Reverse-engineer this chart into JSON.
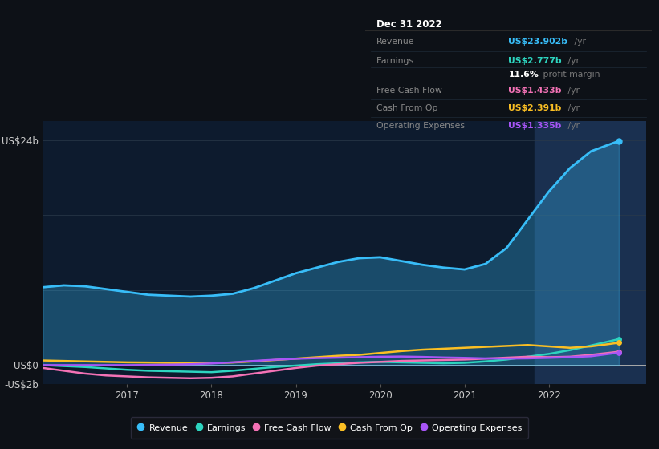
{
  "bg_color": "#0d1117",
  "plot_bg_color": "#0d1b2e",
  "grid_color": "#2a3a4a",
  "ylim": [
    -2000000000.0,
    26000000000.0
  ],
  "tooltip_title": "Dec 31 2022",
  "tooltip_rows": [
    {
      "label": "Revenue",
      "value_colored": "US$23.902b",
      "value_suffix": " /yr",
      "color": "#38bdf8",
      "extra": null
    },
    {
      "label": "Earnings",
      "value_colored": "US$2.777b",
      "value_suffix": " /yr",
      "color": "#2dd4bf",
      "extra": "11.6% profit margin"
    },
    {
      "label": "Free Cash Flow",
      "value_colored": "US$1.433b",
      "value_suffix": " /yr",
      "color": "#f472b6",
      "extra": null
    },
    {
      "label": "Cash From Op",
      "value_colored": "US$2.391b",
      "value_suffix": " /yr",
      "color": "#fbbf24",
      "extra": null
    },
    {
      "label": "Operating Expenses",
      "value_colored": "US$1.335b",
      "value_suffix": " /yr",
      "color": "#a855f7",
      "extra": null
    }
  ],
  "series": {
    "revenue": {
      "color": "#38bdf8",
      "fill_alpha": 0.3,
      "lw": 2.0,
      "x": [
        2016.0,
        2016.25,
        2016.5,
        2016.75,
        2017.0,
        2017.25,
        2017.5,
        2017.75,
        2018.0,
        2018.25,
        2018.5,
        2018.75,
        2019.0,
        2019.25,
        2019.5,
        2019.75,
        2020.0,
        2020.25,
        2020.5,
        2020.75,
        2021.0,
        2021.25,
        2021.5,
        2021.75,
        2022.0,
        2022.25,
        2022.5,
        2022.83
      ],
      "y": [
        8300000000.0,
        8500000000.0,
        8400000000.0,
        8100000000.0,
        7800000000.0,
        7500000000.0,
        7400000000.0,
        7300000000.0,
        7400000000.0,
        7600000000.0,
        8200000000.0,
        9000000000.0,
        9800000000.0,
        10400000000.0,
        11000000000.0,
        11400000000.0,
        11500000000.0,
        11100000000.0,
        10700000000.0,
        10400000000.0,
        10200000000.0,
        10800000000.0,
        12500000000.0,
        15500000000.0,
        18500000000.0,
        21000000000.0,
        22800000000.0,
        23900000000.0
      ]
    },
    "earnings": {
      "color": "#2dd4bf",
      "lw": 1.8,
      "x": [
        2016.0,
        2016.25,
        2016.5,
        2016.75,
        2017.0,
        2017.25,
        2017.5,
        2017.75,
        2018.0,
        2018.25,
        2018.5,
        2018.75,
        2019.0,
        2019.25,
        2019.5,
        2019.75,
        2020.0,
        2020.25,
        2020.5,
        2020.75,
        2021.0,
        2021.25,
        2021.5,
        2021.75,
        2022.0,
        2022.25,
        2022.5,
        2022.83
      ],
      "y": [
        0.0,
        -100000000.0,
        -200000000.0,
        -350000000.0,
        -500000000.0,
        -600000000.0,
        -650000000.0,
        -700000000.0,
        -750000000.0,
        -600000000.0,
        -400000000.0,
        -200000000.0,
        -50000000.0,
        100000000.0,
        200000000.0,
        300000000.0,
        350000000.0,
        300000000.0,
        250000000.0,
        200000000.0,
        250000000.0,
        400000000.0,
        600000000.0,
        900000000.0,
        1200000000.0,
        1600000000.0,
        2100000000.0,
        2777000000.0
      ]
    },
    "free_cash_flow": {
      "color": "#f472b6",
      "lw": 1.8,
      "x": [
        2016.0,
        2016.25,
        2016.5,
        2016.75,
        2017.0,
        2017.25,
        2017.5,
        2017.75,
        2018.0,
        2018.25,
        2018.5,
        2018.75,
        2019.0,
        2019.25,
        2019.5,
        2019.75,
        2020.0,
        2020.25,
        2020.5,
        2020.75,
        2021.0,
        2021.25,
        2021.5,
        2021.75,
        2022.0,
        2022.25,
        2022.5,
        2022.83
      ],
      "y": [
        -300000000.0,
        -600000000.0,
        -900000000.0,
        -1100000000.0,
        -1200000000.0,
        -1300000000.0,
        -1350000000.0,
        -1400000000.0,
        -1350000000.0,
        -1200000000.0,
        -900000000.0,
        -600000000.0,
        -300000000.0,
        -50000000.0,
        100000000.0,
        250000000.0,
        350000000.0,
        450000000.0,
        500000000.0,
        550000000.0,
        600000000.0,
        700000000.0,
        800000000.0,
        900000000.0,
        850000000.0,
        900000000.0,
        1100000000.0,
        1433000000.0
      ]
    },
    "cash_from_op": {
      "color": "#fbbf24",
      "lw": 1.8,
      "x": [
        2016.0,
        2016.25,
        2016.5,
        2016.75,
        2017.0,
        2017.25,
        2017.5,
        2017.75,
        2018.0,
        2018.25,
        2018.5,
        2018.75,
        2019.0,
        2019.25,
        2019.5,
        2019.75,
        2020.0,
        2020.25,
        2020.5,
        2020.75,
        2021.0,
        2021.25,
        2021.5,
        2021.75,
        2022.0,
        2022.25,
        2022.5,
        2022.83
      ],
      "y": [
        500000000.0,
        450000000.0,
        400000000.0,
        350000000.0,
        300000000.0,
        280000000.0,
        250000000.0,
        220000000.0,
        220000000.0,
        280000000.0,
        400000000.0,
        550000000.0,
        700000000.0,
        850000000.0,
        1000000000.0,
        1100000000.0,
        1300000000.0,
        1500000000.0,
        1650000000.0,
        1750000000.0,
        1850000000.0,
        1950000000.0,
        2050000000.0,
        2150000000.0,
        2000000000.0,
        1850000000.0,
        2000000000.0,
        2391000000.0
      ]
    },
    "operating_expenses": {
      "color": "#a855f7",
      "lw": 1.8,
      "x": [
        2016.0,
        2016.25,
        2016.5,
        2016.75,
        2017.0,
        2017.25,
        2017.5,
        2017.75,
        2018.0,
        2018.25,
        2018.5,
        2018.75,
        2019.0,
        2019.25,
        2019.5,
        2019.75,
        2020.0,
        2020.25,
        2020.5,
        2020.75,
        2021.0,
        2021.25,
        2021.5,
        2021.75,
        2022.0,
        2022.25,
        2022.5,
        2022.83
      ],
      "y": [
        0.0,
        0.0,
        0.0,
        0.0,
        0.0,
        20000000.0,
        50000000.0,
        100000000.0,
        180000000.0,
        300000000.0,
        450000000.0,
        580000000.0,
        680000000.0,
        750000000.0,
        800000000.0,
        850000000.0,
        900000000.0,
        920000000.0,
        880000000.0,
        820000000.0,
        780000000.0,
        720000000.0,
        700000000.0,
        720000000.0,
        780000000.0,
        850000000.0,
        950000000.0,
        1335000000.0
      ]
    }
  },
  "highlight_color": "#1a3050",
  "legend": [
    {
      "label": "Revenue",
      "color": "#38bdf8"
    },
    {
      "label": "Earnings",
      "color": "#2dd4bf"
    },
    {
      "label": "Free Cash Flow",
      "color": "#f472b6"
    },
    {
      "label": "Cash From Op",
      "color": "#fbbf24"
    },
    {
      "label": "Operating Expenses",
      "color": "#a855f7"
    }
  ]
}
